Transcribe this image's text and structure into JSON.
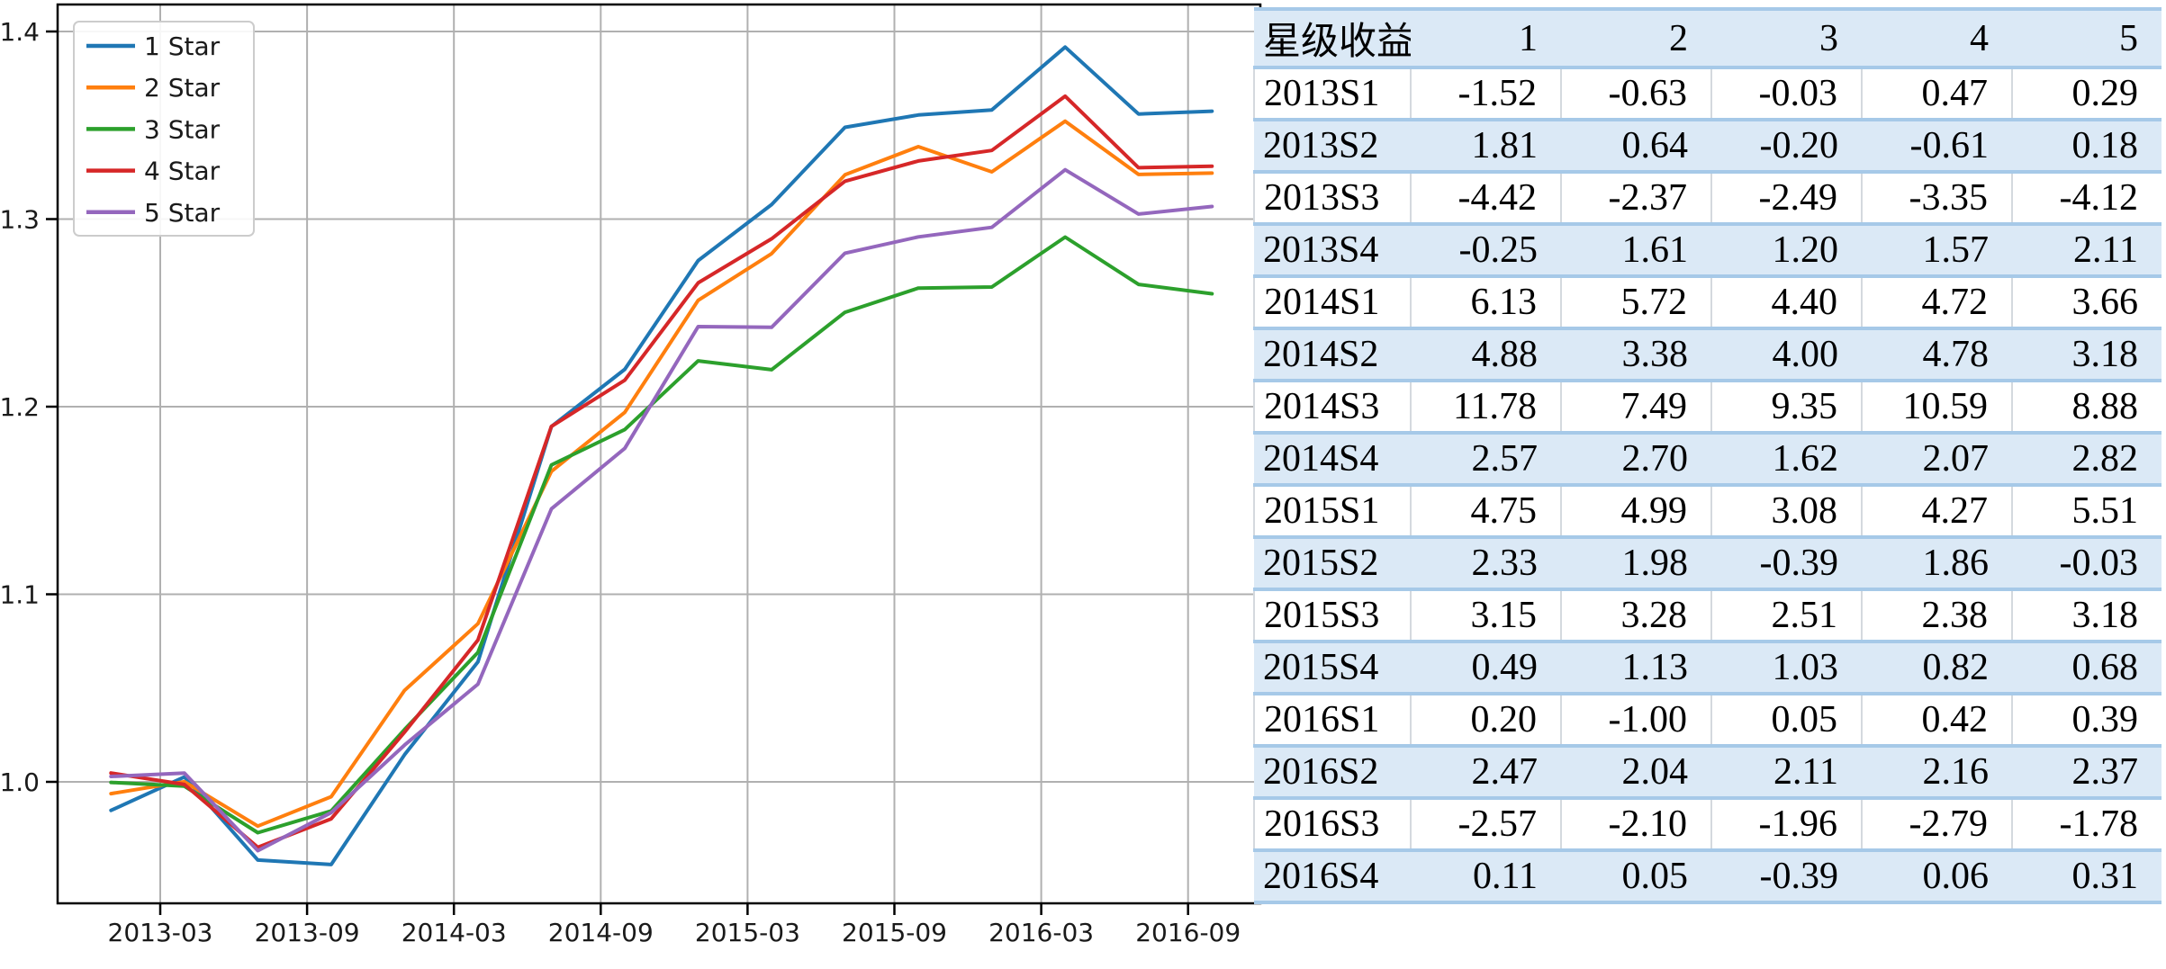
{
  "figure": {
    "background": "#ffffff"
  },
  "chart_data": {
    "type": "line",
    "title": "",
    "xlabel": "",
    "ylabel": "",
    "x_tick_labels": [
      "2013-03",
      "2013-09",
      "2014-03",
      "2014-09",
      "2015-03",
      "2015-09",
      "2016-03",
      "2016-09"
    ],
    "y_tick_labels": [
      "1.0",
      "1.1",
      "1.2",
      "1.3",
      "1.4"
    ],
    "y_tick_values": [
      1.0,
      1.1,
      1.2,
      1.3,
      1.4
    ],
    "ylim": [
      0.935,
      1.414
    ],
    "grid": true,
    "grid_color": "#b0b0b0",
    "axis_color": "#000000",
    "legend_position": "upper-left",
    "x_periods": [
      "2013S1",
      "2013S2",
      "2013S3",
      "2013S4",
      "2014S1",
      "2014S2",
      "2014S3",
      "2014S4",
      "2015S1",
      "2015S2",
      "2015S3",
      "2015S4",
      "2016S1",
      "2016S2",
      "2016S3",
      "2016S4"
    ],
    "series": [
      {
        "name": "1 Star",
        "color": "#1f77b4",
        "values": [
          0.9848,
          1.0026,
          0.9583,
          0.9559,
          1.0145,
          1.064,
          1.1894,
          1.2199,
          1.2779,
          1.3077,
          1.3489,
          1.3555,
          1.3582,
          1.3917,
          1.356,
          1.3575
        ]
      },
      {
        "name": "2 Star",
        "color": "#ff7f0e",
        "values": [
          0.9937,
          1.0001,
          0.9764,
          0.9921,
          1.0488,
          1.0843,
          1.1655,
          1.197,
          1.2567,
          1.2816,
          1.3236,
          1.3386,
          1.3252,
          1.3522,
          1.3238,
          1.3245
        ]
      },
      {
        "name": "3 Star",
        "color": "#2ca02c",
        "values": [
          0.9997,
          0.9977,
          0.9729,
          0.9845,
          1.0279,
          1.069,
          1.1689,
          1.1878,
          1.2244,
          1.2197,
          1.2503,
          1.2632,
          1.2638,
          1.2904,
          1.2652,
          1.2602
        ]
      },
      {
        "name": "4 Star",
        "color": "#d62728",
        "values": [
          1.0047,
          0.9986,
          0.9651,
          0.9803,
          1.0265,
          1.0756,
          1.1895,
          1.2141,
          1.266,
          1.2895,
          1.3202,
          1.331,
          1.3366,
          1.3655,
          1.3274,
          1.3282
        ]
      },
      {
        "name": "5 Star",
        "color": "#9467bd",
        "values": [
          1.0029,
          1.0047,
          0.9633,
          0.9836,
          1.0196,
          1.0521,
          1.1455,
          1.1778,
          1.2427,
          1.2423,
          1.2818,
          1.2905,
          1.2956,
          1.3263,
          1.3027,
          1.3067
        ]
      }
    ]
  },
  "table": {
    "title_cell": "星级收益",
    "columns": [
      "1",
      "2",
      "3",
      "4",
      "5"
    ],
    "rows": [
      {
        "period": "2013S1",
        "values": [
          "-1.52",
          "-0.63",
          "-0.03",
          "0.47",
          "0.29"
        ]
      },
      {
        "period": "2013S2",
        "values": [
          "1.81",
          "0.64",
          "-0.20",
          "-0.61",
          "0.18"
        ]
      },
      {
        "period": "2013S3",
        "values": [
          "-4.42",
          "-2.37",
          "-2.49",
          "-3.35",
          "-4.12"
        ]
      },
      {
        "period": "2013S4",
        "values": [
          "-0.25",
          "1.61",
          "1.20",
          "1.57",
          "2.11"
        ]
      },
      {
        "period": "2014S1",
        "values": [
          "6.13",
          "5.72",
          "4.40",
          "4.72",
          "3.66"
        ]
      },
      {
        "period": "2014S2",
        "values": [
          "4.88",
          "3.38",
          "4.00",
          "4.78",
          "3.18"
        ]
      },
      {
        "period": "2014S3",
        "values": [
          "11.78",
          "7.49",
          "9.35",
          "10.59",
          "8.88"
        ]
      },
      {
        "period": "2014S4",
        "values": [
          "2.57",
          "2.70",
          "1.62",
          "2.07",
          "2.82"
        ]
      },
      {
        "period": "2015S1",
        "values": [
          "4.75",
          "4.99",
          "3.08",
          "4.27",
          "5.51"
        ]
      },
      {
        "period": "2015S2",
        "values": [
          "2.33",
          "1.98",
          "-0.39",
          "1.86",
          "-0.03"
        ]
      },
      {
        "period": "2015S3",
        "values": [
          "3.15",
          "3.28",
          "2.51",
          "2.38",
          "3.18"
        ]
      },
      {
        "period": "2015S4",
        "values": [
          "0.49",
          "1.13",
          "1.03",
          "0.82",
          "0.68"
        ]
      },
      {
        "period": "2016S1",
        "values": [
          "0.20",
          "-1.00",
          "0.05",
          "0.42",
          "0.39"
        ]
      },
      {
        "period": "2016S2",
        "values": [
          "2.47",
          "2.04",
          "2.11",
          "2.16",
          "2.37"
        ]
      },
      {
        "period": "2016S3",
        "values": [
          "-2.57",
          "-2.10",
          "-1.96",
          "-2.79",
          "-1.78"
        ]
      },
      {
        "period": "2016S4",
        "values": [
          "0.11",
          "0.05",
          "-0.39",
          "0.06",
          "0.31"
        ]
      }
    ],
    "style": {
      "band_color": "#dbe9f6",
      "border_color": "#a6c9e8",
      "grid_line_color": "#d4d9de",
      "text_color": "#000000"
    }
  }
}
